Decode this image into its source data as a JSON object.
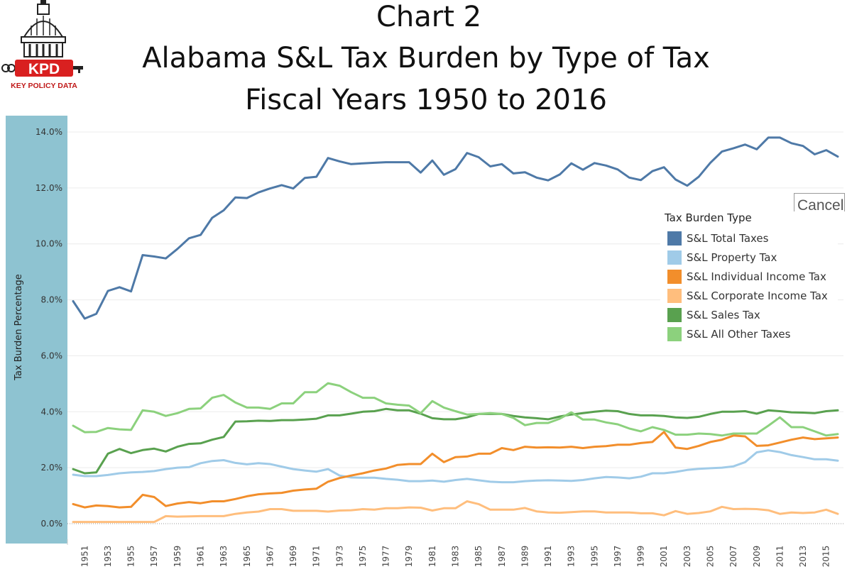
{
  "logo": {
    "text": "KPD",
    "subtext": "KEY POLICY DATA"
  },
  "header": {
    "line1": "Chart 2",
    "line2": "Alabama S&L Tax Burden by Type of Tax",
    "line3": "Fiscal Years 1950 to 2016"
  },
  "cancel": {
    "label": "Cancel"
  },
  "colors": {
    "axis_band": "#8ec3d1",
    "grid": "#ececec",
    "zero_line": "#9a9a9a",
    "total": "#4e79a7",
    "property": "#a0cbe8",
    "individual": "#f28e2b",
    "corporate": "#ffbe7d",
    "sales": "#59a14f",
    "other": "#8cd17d"
  },
  "chart_data": {
    "type": "line",
    "title": "Alabama S&L Tax Burden by Type of Tax",
    "subtitle": "Fiscal Years 1950 to 2016",
    "ylabel": "Tax Burden Percentage",
    "xlabel": "",
    "ylim": [
      0,
      14.5
    ],
    "yticks": [
      0,
      2,
      4,
      6,
      8,
      10,
      12,
      14
    ],
    "ytick_labels": [
      "0.0%",
      "2.0%",
      "4.0%",
      "6.0%",
      "8.0%",
      "10.0%",
      "12.0%",
      "14.0%"
    ],
    "xlim": [
      1950,
      2016
    ],
    "xtick_labels": [
      "1951",
      "1953",
      "1955",
      "1957",
      "1959",
      "1961",
      "1963",
      "1965",
      "1967",
      "1969",
      "1971",
      "1973",
      "1975",
      "1977",
      "1979",
      "1981",
      "1983",
      "1985",
      "1987",
      "1989",
      "1991",
      "1993",
      "1995",
      "1997",
      "1999",
      "2001",
      "2003",
      "2005",
      "2007",
      "2009",
      "2011",
      "2013",
      "2015"
    ],
    "grid": true,
    "legend_title": "Tax Burden Type",
    "legend_position": "right",
    "x": [
      1950,
      1951,
      1952,
      1953,
      1954,
      1955,
      1956,
      1957,
      1958,
      1959,
      1960,
      1961,
      1962,
      1963,
      1964,
      1965,
      1966,
      1967,
      1968,
      1969,
      1970,
      1971,
      1972,
      1973,
      1974,
      1975,
      1976,
      1977,
      1978,
      1979,
      1980,
      1981,
      1982,
      1983,
      1984,
      1985,
      1986,
      1987,
      1988,
      1989,
      1990,
      1991,
      1992,
      1993,
      1994,
      1995,
      1996,
      1997,
      1998,
      1999,
      2000,
      2001,
      2002,
      2003,
      2004,
      2005,
      2006,
      2007,
      2008,
      2009,
      2010,
      2011,
      2012,
      2013,
      2014,
      2015,
      2016
    ],
    "series": [
      {
        "name": "S&L Total Taxes",
        "key": "total",
        "values": [
          7.95,
          7.33,
          7.5,
          8.32,
          8.45,
          8.3,
          9.6,
          9.55,
          9.48,
          9.82,
          10.2,
          10.32,
          10.93,
          11.2,
          11.66,
          11.64,
          11.84,
          11.98,
          12.1,
          11.98,
          12.36,
          12.4,
          13.07,
          12.95,
          12.85,
          12.88,
          12.9,
          12.92,
          12.92,
          12.92,
          12.55,
          12.98,
          12.47,
          12.67,
          13.25,
          13.1,
          12.77,
          12.85,
          12.52,
          12.56,
          12.37,
          12.27,
          12.48,
          12.88,
          12.65,
          12.89,
          12.8,
          12.66,
          12.37,
          12.28,
          12.6,
          12.74,
          12.3,
          12.08,
          12.4,
          12.9,
          13.3,
          13.42,
          13.55,
          13.38,
          13.8,
          13.8,
          13.6,
          13.5,
          13.2,
          13.35,
          13.12
        ]
      },
      {
        "name": "S&L Property Tax",
        "key": "property",
        "values": [
          1.75,
          1.7,
          1.7,
          1.74,
          1.8,
          1.83,
          1.85,
          1.88,
          1.95,
          2.0,
          2.02,
          2.16,
          2.24,
          2.27,
          2.17,
          2.12,
          2.16,
          2.13,
          2.04,
          1.95,
          1.9,
          1.86,
          1.95,
          1.72,
          1.65,
          1.64,
          1.64,
          1.6,
          1.57,
          1.52,
          1.52,
          1.54,
          1.5,
          1.56,
          1.6,
          1.55,
          1.5,
          1.48,
          1.48,
          1.52,
          1.54,
          1.55,
          1.54,
          1.53,
          1.56,
          1.62,
          1.67,
          1.65,
          1.62,
          1.68,
          1.8,
          1.8,
          1.85,
          1.92,
          1.96,
          1.98,
          2.0,
          2.05,
          2.2,
          2.55,
          2.62,
          2.56,
          2.45,
          2.38,
          2.3,
          2.3,
          2.25
        ]
      },
      {
        "name": "S&L Individual Income Tax",
        "key": "individual",
        "values": [
          0.7,
          0.58,
          0.65,
          0.63,
          0.58,
          0.6,
          1.03,
          0.95,
          0.63,
          0.72,
          0.77,
          0.73,
          0.8,
          0.8,
          0.88,
          0.98,
          1.05,
          1.08,
          1.1,
          1.18,
          1.22,
          1.25,
          1.5,
          1.63,
          1.72,
          1.8,
          1.9,
          1.97,
          2.1,
          2.13,
          2.13,
          2.5,
          2.2,
          2.38,
          2.4,
          2.5,
          2.5,
          2.7,
          2.63,
          2.75,
          2.72,
          2.73,
          2.72,
          2.75,
          2.7,
          2.75,
          2.77,
          2.82,
          2.82,
          2.88,
          2.92,
          3.28,
          2.72,
          2.67,
          2.78,
          2.92,
          3.0,
          3.15,
          3.12,
          2.78,
          2.8,
          2.9,
          3.0,
          3.08,
          3.02,
          3.05,
          3.08
        ]
      },
      {
        "name": "S&L Corporate Income Tax",
        "key": "corporate",
        "values": [
          0.06,
          0.06,
          0.06,
          0.06,
          0.06,
          0.06,
          0.06,
          0.06,
          0.27,
          0.25,
          0.26,
          0.27,
          0.27,
          0.27,
          0.35,
          0.4,
          0.43,
          0.52,
          0.52,
          0.46,
          0.46,
          0.46,
          0.43,
          0.47,
          0.48,
          0.52,
          0.5,
          0.55,
          0.55,
          0.58,
          0.57,
          0.47,
          0.55,
          0.55,
          0.8,
          0.7,
          0.5,
          0.5,
          0.5,
          0.56,
          0.44,
          0.4,
          0.39,
          0.41,
          0.44,
          0.44,
          0.4,
          0.4,
          0.4,
          0.37,
          0.37,
          0.3,
          0.45,
          0.35,
          0.38,
          0.44,
          0.6,
          0.52,
          0.53,
          0.52,
          0.48,
          0.35,
          0.4,
          0.38,
          0.4,
          0.5,
          0.35
        ]
      },
      {
        "name": "S&L Sales Tax",
        "key": "sales",
        "values": [
          1.95,
          1.8,
          1.83,
          2.5,
          2.67,
          2.52,
          2.63,
          2.68,
          2.58,
          2.75,
          2.85,
          2.87,
          3.0,
          3.1,
          3.65,
          3.66,
          3.68,
          3.67,
          3.7,
          3.7,
          3.72,
          3.75,
          3.87,
          3.87,
          3.93,
          4.0,
          4.02,
          4.1,
          4.05,
          4.05,
          3.93,
          3.77,
          3.73,
          3.73,
          3.8,
          3.92,
          3.92,
          3.92,
          3.85,
          3.8,
          3.77,
          3.73,
          3.83,
          3.9,
          3.95,
          4.0,
          4.04,
          4.02,
          3.92,
          3.87,
          3.87,
          3.85,
          3.8,
          3.78,
          3.82,
          3.92,
          4.0,
          4.0,
          4.02,
          3.93,
          4.05,
          4.02,
          3.98,
          3.97,
          3.95,
          4.02,
          4.05
        ]
      },
      {
        "name": "S&L All Other Taxes",
        "key": "other",
        "values": [
          3.5,
          3.27,
          3.28,
          3.42,
          3.37,
          3.35,
          4.05,
          4.0,
          3.85,
          3.95,
          4.1,
          4.12,
          4.5,
          4.6,
          4.33,
          4.15,
          4.15,
          4.1,
          4.3,
          4.3,
          4.7,
          4.7,
          5.02,
          4.93,
          4.7,
          4.5,
          4.5,
          4.3,
          4.25,
          4.22,
          3.95,
          4.38,
          4.15,
          4.02,
          3.9,
          3.92,
          3.95,
          3.92,
          3.78,
          3.52,
          3.6,
          3.6,
          3.75,
          3.98,
          3.72,
          3.72,
          3.62,
          3.55,
          3.4,
          3.3,
          3.45,
          3.35,
          3.18,
          3.18,
          3.22,
          3.2,
          3.15,
          3.22,
          3.22,
          3.22,
          3.5,
          3.8,
          3.45,
          3.45,
          3.3,
          3.15,
          3.2
        ]
      }
    ]
  }
}
